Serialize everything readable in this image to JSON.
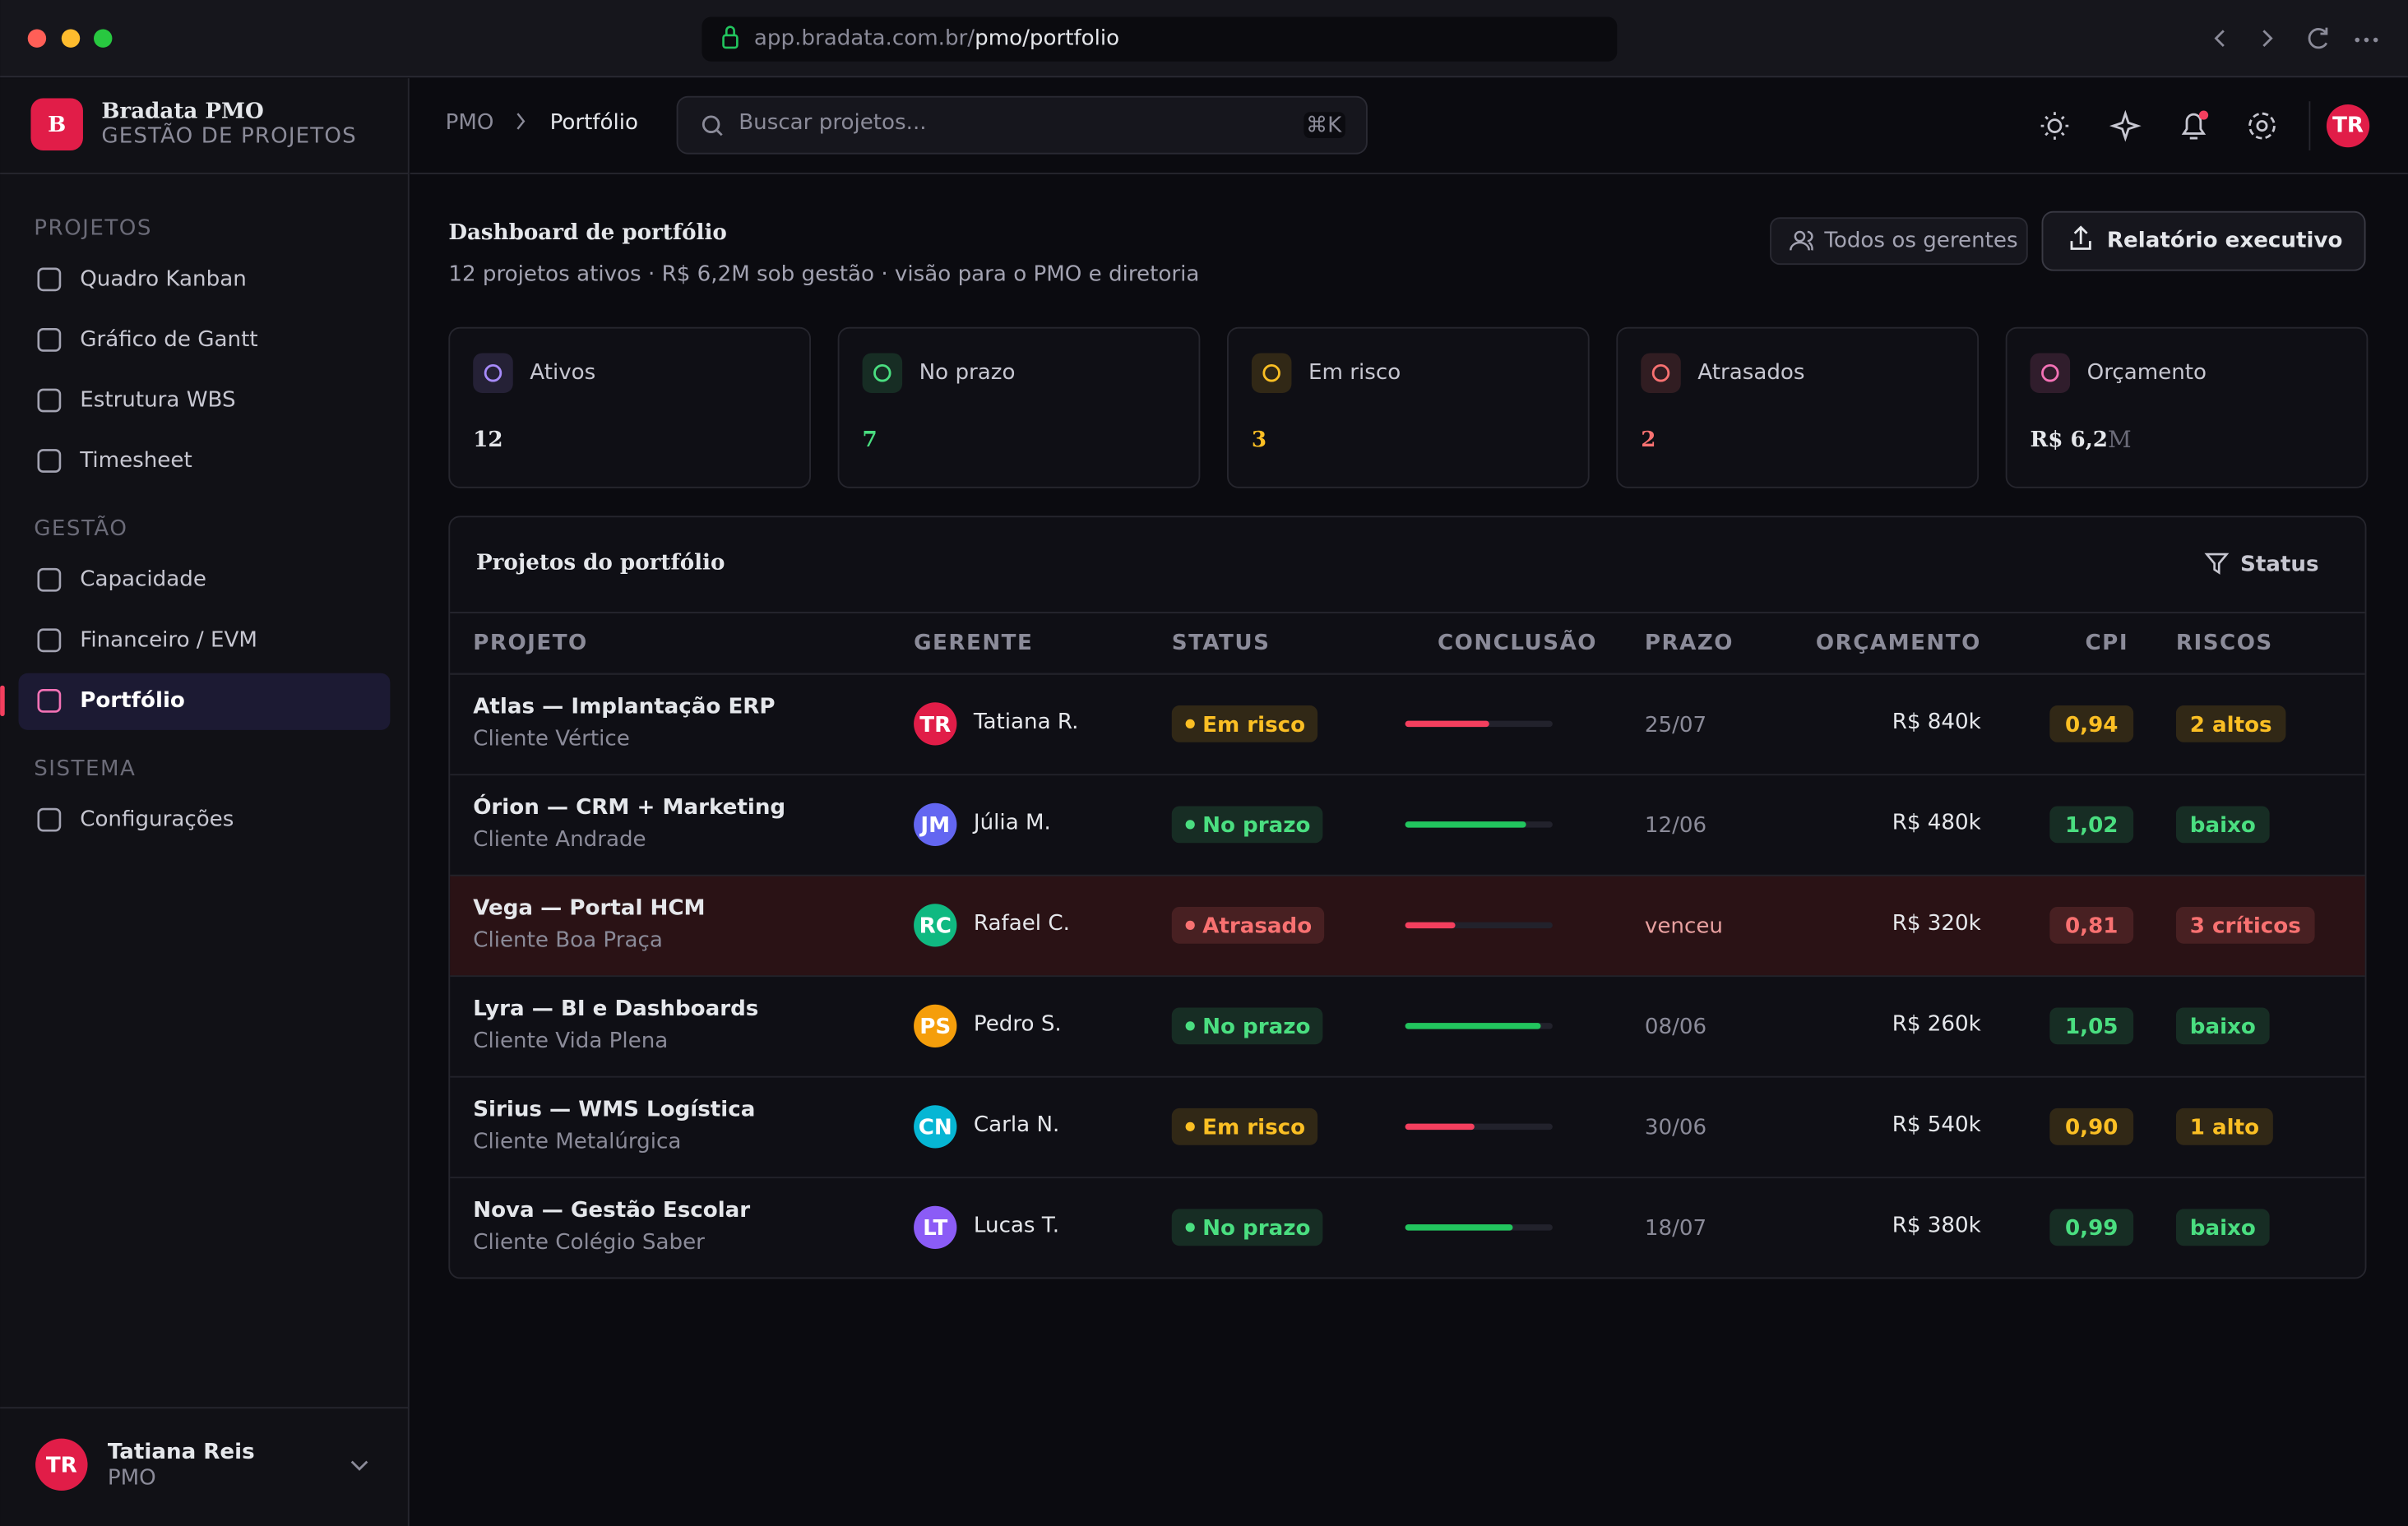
{
  "browser": {
    "url_host": "app.bradata.com.br/",
    "url_path": "pmo/portfolio"
  },
  "sidebar": {
    "logo_letter": "B",
    "brand": "Bradata PMO",
    "tagline": "GESTÃO DE PROJETOS",
    "sections": [
      {
        "title": "PROJETOS",
        "items": [
          {
            "label": "Quadro Kanban"
          },
          {
            "label": "Gráfico de Gantt"
          },
          {
            "label": "Estrutura WBS"
          },
          {
            "label": "Timesheet"
          }
        ]
      },
      {
        "title": "GESTÃO",
        "items": [
          {
            "label": "Capacidade"
          },
          {
            "label": "Financeiro / EVM"
          },
          {
            "label": "Portfólio",
            "active": true
          }
        ]
      },
      {
        "title": "SISTEMA",
        "items": [
          {
            "label": "Configurações"
          }
        ]
      }
    ],
    "user": {
      "initials": "TR",
      "name": "Tatiana Reis",
      "role": "PMO"
    }
  },
  "topbar": {
    "breadcrumb": [
      "PMO",
      "Portfólio"
    ],
    "search_placeholder": "Buscar projetos...",
    "shortcut": "⌘K",
    "avatar": "TR"
  },
  "header": {
    "title": "Dashboard de portfólio",
    "subtitle": "12 projetos ativos · R$ 6,2M sob gestão · visão para o PMO e diretoria",
    "filter_button": "Todos os gerentes",
    "report_button": "Relatório executivo"
  },
  "kpis": [
    {
      "label": "Ativos",
      "value": "12",
      "color": "#e5e7eb",
      "icon_color": "#a78bfa"
    },
    {
      "label": "No prazo",
      "value": "7",
      "color": "#4ade80",
      "icon_color": "#4ade80"
    },
    {
      "label": "Em risco",
      "value": "3",
      "color": "#fbbf24",
      "icon_color": "#fbbf24"
    },
    {
      "label": "Atrasados",
      "value": "2",
      "color": "#f87171",
      "icon_color": "#f87171"
    },
    {
      "label": "Orçamento",
      "value": "R$ 6,2",
      "unit": "M",
      "color": "#e5e7eb",
      "icon_color": "#f472b6"
    }
  ],
  "table": {
    "title": "Projetos do portfólio",
    "filter": "Status",
    "columns": [
      "PROJETO",
      "GERENTE",
      "STATUS",
      "CONCLUSÃO",
      "PRAZO",
      "ORÇAMENTO",
      "CPI",
      "RISCOS"
    ],
    "rows": [
      {
        "name": "Atlas — Implantação ERP",
        "client": "Cliente Vértice",
        "initials": "TR",
        "avatar_color": "#e11d48",
        "manager": "Tatiana R.",
        "status": "Em risco",
        "status_color": "#fbbf24",
        "progress": 57,
        "progress_color": "#f43f5e",
        "deadline": "25/07",
        "budget": "R$ 840k",
        "cpi": "0,94",
        "cpi_color": "#fbbf24",
        "risk": "2 altos",
        "risk_color": "#fbbf24"
      },
      {
        "name": "Órion — CRM + Marketing",
        "client": "Cliente Andrade",
        "initials": "JM",
        "avatar_color": "#6366f1",
        "manager": "Júlia M.",
        "status": "No prazo",
        "status_color": "#4ade80",
        "progress": 82,
        "progress_color": "#22c55e",
        "deadline": "12/06",
        "budget": "R$ 480k",
        "cpi": "1,02",
        "cpi_color": "#4ade80",
        "risk": "baixo",
        "risk_color": "#4ade80"
      },
      {
        "name": "Vega — Portal HCM",
        "client": "Cliente Boa Praça",
        "initials": "RC",
        "avatar_color": "#10b981",
        "manager": "Rafael C.",
        "status": "Atrasado",
        "status_color": "#f87171",
        "progress": 34,
        "progress_color": "#f43f5e",
        "deadline": "venceu",
        "budget": "R$ 320k",
        "cpi": "0,81",
        "cpi_color": "#f87171",
        "risk": "3 críticos",
        "risk_color": "#f87171",
        "highlight": true
      },
      {
        "name": "Lyra — BI e Dashboards",
        "client": "Cliente Vida Plena",
        "initials": "PS",
        "avatar_color": "#f59e0b",
        "manager": "Pedro S.",
        "status": "No prazo",
        "status_color": "#4ade80",
        "progress": 92,
        "progress_color": "#22c55e",
        "deadline": "08/06",
        "budget": "R$ 260k",
        "cpi": "1,05",
        "cpi_color": "#4ade80",
        "risk": "baixo",
        "risk_color": "#4ade80"
      },
      {
        "name": "Sirius — WMS Logística",
        "client": "Cliente Metalúrgica",
        "initials": "CN",
        "avatar_color": "#06b6d4",
        "manager": "Carla N.",
        "status": "Em risco",
        "status_color": "#fbbf24",
        "progress": 47,
        "progress_color": "#f43f5e",
        "deadline": "30/06",
        "budget": "R$ 540k",
        "cpi": "0,90",
        "cpi_color": "#fbbf24",
        "risk": "1 alto",
        "risk_color": "#fbbf24"
      },
      {
        "name": "Nova — Gestão Escolar",
        "client": "Cliente Colégio Saber",
        "initials": "LT",
        "avatar_color": "#8b5cf6",
        "manager": "Lucas T.",
        "status": "No prazo",
        "status_color": "#4ade80",
        "progress": 73,
        "progress_color": "#22c55e",
        "deadline": "18/07",
        "budget": "R$ 380k",
        "cpi": "0,99",
        "cpi_color": "#4ade80",
        "risk": "baixo",
        "risk_color": "#4ade80"
      }
    ]
  }
}
